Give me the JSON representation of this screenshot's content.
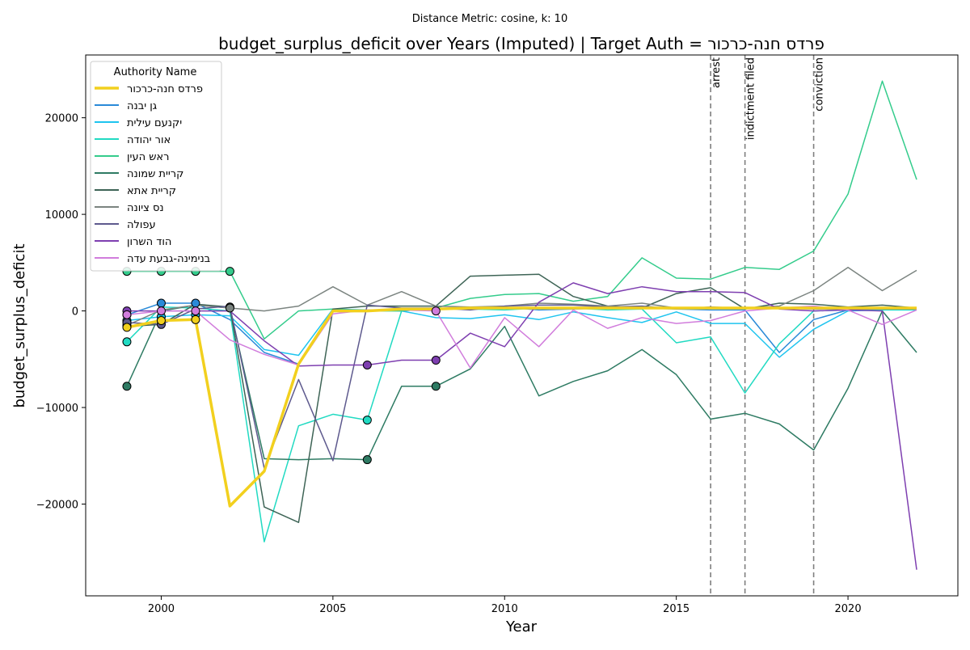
{
  "suptitle": "Distance Metric: cosine, k: 10",
  "colors": {
    "vline": "#7f7f7f",
    "axis": "#000000",
    "marker_edge": "#000000"
  },
  "chart_data": {
    "type": "line",
    "title": "budget_surplus_deficit over Years (Imputed) | Target Auth = פרדס חנה-כרכור",
    "xlabel": "Year",
    "ylabel": "budget_surplus_deficit",
    "xlim": [
      1997.8,
      2023.2
    ],
    "ylim": [
      -29500,
      26500
    ],
    "xticks": [
      2000,
      2005,
      2010,
      2015,
      2020
    ],
    "yticks": [
      -20000,
      -10000,
      0,
      10000,
      20000
    ],
    "grid": false,
    "legend": {
      "title": "Authority Name",
      "placement": "top-left"
    },
    "x": [
      1999,
      2000,
      2001,
      2002,
      2003,
      2004,
      2005,
      2006,
      2007,
      2008,
      2009,
      2010,
      2011,
      2012,
      2013,
      2014,
      2015,
      2016,
      2017,
      2018,
      2019,
      2020,
      2021,
      2022
    ],
    "events": [
      {
        "x": 2016,
        "label": "arrest"
      },
      {
        "x": 2017,
        "label": "indictment filed"
      },
      {
        "x": 2019,
        "label": "conviction"
      }
    ],
    "series": [
      {
        "name": "פרדס חנה-כרכור",
        "color": "#f2d01e",
        "width": 3.5,
        "target": true,
        "values": [
          -1700,
          -1000,
          -900,
          -20200,
          -16600,
          -5500,
          0,
          0,
          200,
          200,
          300,
          300,
          300,
          300,
          300,
          300,
          300,
          300,
          300,
          300,
          300,
          300,
          300,
          300
        ],
        "imputed": [
          1999,
          2000,
          2001
        ]
      },
      {
        "name": "גן יבנה",
        "color": "#2a8ad8",
        "width": 1.5,
        "values": [
          -400,
          800,
          800,
          -900,
          -4300,
          -5500,
          100,
          0,
          100,
          200,
          200,
          400,
          100,
          200,
          300,
          300,
          200,
          100,
          100,
          -4300,
          -900,
          100,
          200,
          200
        ],
        "imputed": [
          1999,
          2000,
          2001
        ]
      },
      {
        "name": "יקנעם עילית",
        "color": "#1ec4ef",
        "width": 1.5,
        "values": [
          -1000,
          -600,
          -400,
          -500,
          -4000,
          -4600,
          200,
          100,
          0,
          -700,
          -800,
          -400,
          -900,
          -100,
          -700,
          -1200,
          -100,
          -1300,
          -1300,
          -4800,
          -1900,
          0,
          100,
          200
        ],
        "imputed": [
          1999,
          2000,
          2001
        ]
      },
      {
        "name": "אור יהודה",
        "color": "#21dac2",
        "width": 1.5,
        "values": [
          -3200,
          400,
          300,
          0,
          -23900,
          -11900,
          -10700,
          -11300,
          0,
          300,
          200,
          100,
          300,
          300,
          100,
          200,
          -3300,
          -2700,
          -8500,
          -3400,
          0,
          100,
          100,
          100
        ],
        "imputed": [
          1999,
          2006
        ]
      },
      {
        "name": "ראש העין",
        "color": "#34cc8c",
        "width": 1.5,
        "values": [
          4100,
          4100,
          4100,
          4100,
          -2900,
          0,
          200,
          0,
          0,
          300,
          1300,
          1700,
          1800,
          1000,
          1500,
          5500,
          3400,
          3300,
          4500,
          4300,
          6200,
          12100,
          23800,
          13600
        ],
        "imputed": [
          1999,
          2000,
          2001,
          2002
        ]
      },
      {
        "name": "קריית שמונה",
        "color": "#2e7b63",
        "width": 1.5,
        "values": [
          -7800,
          0,
          600,
          300,
          -15300,
          -15400,
          -15300,
          -15400,
          -7800,
          -7800,
          -6000,
          -1600,
          -8800,
          -7300,
          -6200,
          -4000,
          -6600,
          -11200,
          -10600,
          -11700,
          -14400,
          -8000,
          0,
          -4300
        ],
        "imputed": [
          1999,
          2006,
          2008
        ]
      },
      {
        "name": "קריית אתא",
        "color": "#3e6456",
        "width": 1.5,
        "values": [
          -1600,
          -1400,
          700,
          400,
          -20300,
          -21900,
          200,
          500,
          500,
          500,
          3600,
          3700,
          3800,
          1500,
          500,
          300,
          1800,
          2400,
          200,
          800,
          700,
          400,
          600,
          300
        ],
        "imputed": [
          1999,
          2002
        ]
      },
      {
        "name": "נס ציונה",
        "color": "#7b8480",
        "width": 1.5,
        "values": [
          -1500,
          100,
          600,
          300,
          0,
          500,
          2500,
          600,
          2000,
          500,
          400,
          500,
          800,
          700,
          500,
          800,
          300,
          300,
          300,
          500,
          2100,
          4500,
          2100,
          4200
        ],
        "imputed": [
          1999,
          2002
        ]
      },
      {
        "name": "עפולה",
        "color": "#5e5a8e",
        "width": 1.5,
        "values": [
          -1200,
          -1400,
          200,
          500,
          -16300,
          -7100,
          -15500,
          600,
          300,
          300,
          100,
          500,
          600,
          600,
          400,
          500,
          200,
          400,
          300,
          300,
          200,
          200,
          200,
          200
        ],
        "imputed": [
          1999,
          2000
        ]
      },
      {
        "name": "הוד השרון",
        "color": "#7e3fb0",
        "width": 1.5,
        "values": [
          0,
          0,
          0,
          0,
          -3100,
          -5700,
          -5600,
          -5600,
          -5100,
          -5100,
          -2300,
          -3700,
          900,
          2900,
          1800,
          2500,
          2000,
          2000,
          1900,
          200,
          0,
          100,
          0,
          -26800
        ],
        "imputed": [
          1999,
          2006,
          2008
        ]
      },
      {
        "name": "בנימינה-גבעת עדה",
        "color": "#d17ddc",
        "width": 1.5,
        "values": [
          -400,
          0,
          0,
          -3000,
          -4500,
          -5600,
          -300,
          100,
          100,
          0,
          -5900,
          -700,
          -3700,
          100,
          -1800,
          -700,
          -1300,
          -1000,
          0,
          300,
          500,
          100,
          -1400,
          100
        ],
        "imputed": [
          1999,
          2000,
          2001,
          2008
        ]
      }
    ]
  }
}
